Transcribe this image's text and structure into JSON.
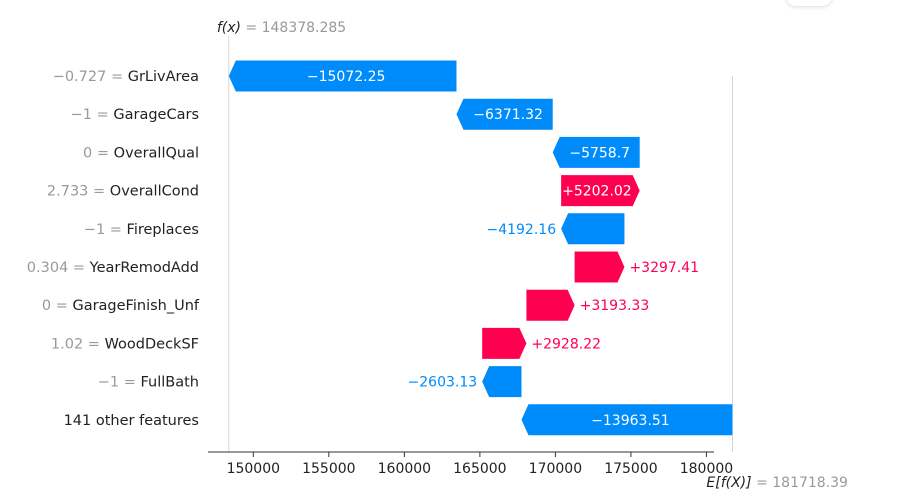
{
  "chart_data": {
    "type": "waterfall",
    "fx_label": "f(x)",
    "fx_value": "148378.285",
    "efx_label": "E[f(X)]",
    "efx_value": "181718.39",
    "base_value": 181718.39,
    "final_value": 148378.285,
    "xlim": [
      147000,
      180500
    ],
    "xticks": [
      150000,
      155000,
      160000,
      165000,
      170000,
      175000,
      180000
    ],
    "xtick_labels": [
      "150000",
      "155000",
      "160000",
      "165000",
      "170000",
      "175000",
      "180000"
    ],
    "features": [
      {
        "value_text": "−0.727",
        "name": "GrLivArea",
        "shap": -15072.25,
        "shap_label": "−15072.25"
      },
      {
        "value_text": "−1",
        "name": "GarageCars",
        "shap": -6371.32,
        "shap_label": "−6371.32"
      },
      {
        "value_text": "0",
        "name": "OverallQual",
        "shap": -5758.7,
        "shap_label": "−5758.7"
      },
      {
        "value_text": "2.733",
        "name": "OverallCond",
        "shap": 5202.02,
        "shap_label": "+5202.02"
      },
      {
        "value_text": "−1",
        "name": "Fireplaces",
        "shap": -4192.16,
        "shap_label": "−4192.16"
      },
      {
        "value_text": "0.304",
        "name": "YearRemodAdd",
        "shap": 3297.41,
        "shap_label": "+3297.41"
      },
      {
        "value_text": "0",
        "name": "GarageFinish_Unf",
        "shap": 3193.33,
        "shap_label": "+3193.33"
      },
      {
        "value_text": "1.02",
        "name": "WoodDeckSF",
        "shap": 2928.22,
        "shap_label": "+2928.22"
      },
      {
        "value_text": "−1",
        "name": "FullBath",
        "shap": -2603.13,
        "shap_label": "−2603.13"
      },
      {
        "value_text": "",
        "name": "141 other features",
        "shap": -13963.51,
        "shap_label": "−13963.51"
      }
    ],
    "colors": {
      "positive": "#ff0051",
      "negative": "#008bfb",
      "text": "#222222",
      "muted": "#999999",
      "axis": "#333333",
      "guide": "#cccccc"
    }
  }
}
